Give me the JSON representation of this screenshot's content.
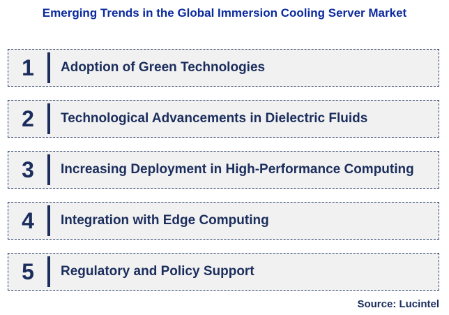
{
  "title": "Emerging Trends in the Global Immersion Cooling Server Market",
  "source": "Source: Lucintel",
  "colors": {
    "title": "#0b2a9d",
    "item": "#1b2d5c",
    "row_bg": "#f1f1f1",
    "border": "#1f3864"
  },
  "trends": [
    {
      "number": "1",
      "label": "Adoption of Green Technologies"
    },
    {
      "number": "2",
      "label": "Technological Advancements in Dielectric Fluids"
    },
    {
      "number": "3",
      "label": "Increasing Deployment in High-Performance Computing"
    },
    {
      "number": "4",
      "label": "Integration with Edge Computing"
    },
    {
      "number": "5",
      "label": "Regulatory and Policy Support"
    }
  ]
}
